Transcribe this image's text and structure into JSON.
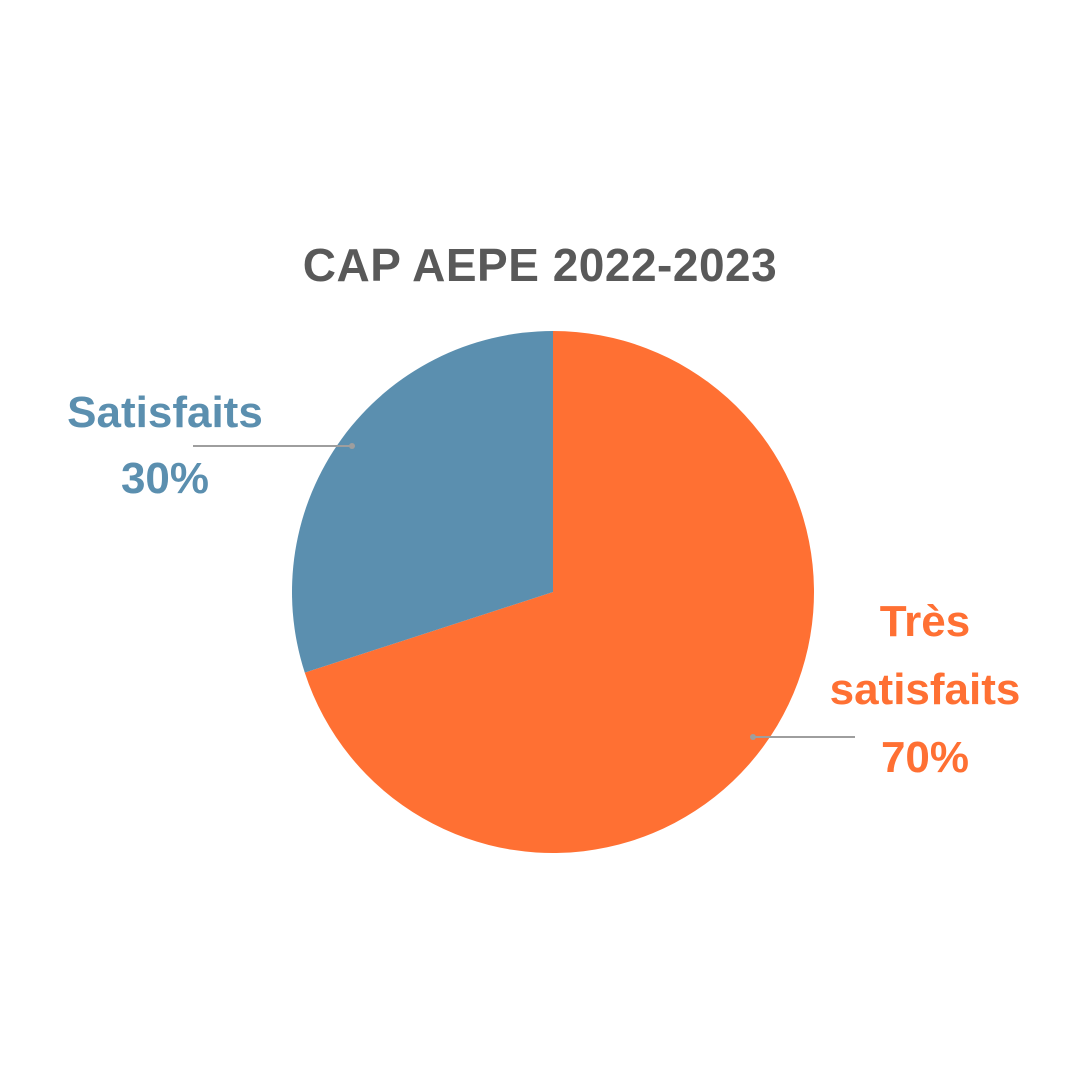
{
  "chart_data": {
    "type": "pie",
    "title": "CAP AEPE 2022-2023",
    "slices": [
      {
        "name_lines": [
          "Très",
          "satisfaits"
        ],
        "value": 70,
        "value_label": "70%",
        "color": "#FF7033"
      },
      {
        "name_lines": [
          "Satisfaits"
        ],
        "value": 30,
        "value_label": "30%",
        "color": "#5B8FAF"
      }
    ],
    "leader_line_color": "#9E9E9E",
    "title_color": "#595959",
    "legend": "none",
    "labels": "outside with leader lines"
  }
}
